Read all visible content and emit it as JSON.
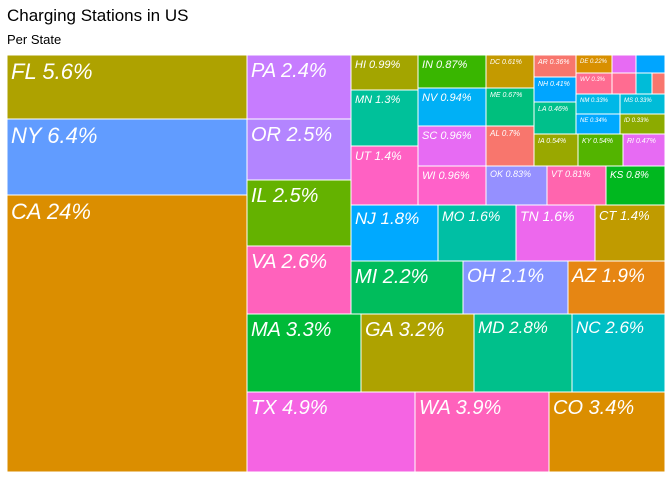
{
  "chart_data": {
    "type": "treemap",
    "title": "Charging Stations in US",
    "subtitle": "Per State",
    "tiles": [
      {
        "label": "CA 24%",
        "state": "CA",
        "value": 24,
        "color": "#DB8E00"
      },
      {
        "label": "NY 6.4%",
        "state": "NY",
        "value": 6.4,
        "color": "#619CFF"
      },
      {
        "label": "FL 5.6%",
        "state": "FL",
        "value": 5.6,
        "color": "#AEA200"
      },
      {
        "label": "TX 4.9%",
        "state": "TX",
        "value": 4.9,
        "color": "#F564E3"
      },
      {
        "label": "WA 3.9%",
        "state": "WA",
        "value": 3.9,
        "color": "#FF62BC"
      },
      {
        "label": "CO 3.4%",
        "state": "CO",
        "value": 3.4,
        "color": "#DB8E00"
      },
      {
        "label": "MA 3.3%",
        "state": "MA",
        "value": 3.3,
        "color": "#00BA38"
      },
      {
        "label": "GA 3.2%",
        "state": "GA",
        "value": 3.2,
        "color": "#AEA200"
      },
      {
        "label": "MD 2.8%",
        "state": "MD",
        "value": 2.8,
        "color": "#00C08B"
      },
      {
        "label": "NC 2.6%",
        "state": "NC",
        "value": 2.6,
        "color": "#00BFC4"
      },
      {
        "label": "VA 2.6%",
        "state": "VA",
        "value": 2.6,
        "color": "#FF62BC"
      },
      {
        "label": "IL 2.5%",
        "state": "IL",
        "value": 2.5,
        "color": "#64B200"
      },
      {
        "label": "OR 2.5%",
        "state": "OR",
        "value": 2.5,
        "color": "#B385FF"
      },
      {
        "label": "PA 2.4%",
        "state": "PA",
        "value": 2.4,
        "color": "#C77CFF"
      },
      {
        "label": "MI 2.2%",
        "state": "MI",
        "value": 2.2,
        "color": "#00BD5C"
      },
      {
        "label": "OH 2.1%",
        "state": "OH",
        "value": 2.1,
        "color": "#8494FF"
      },
      {
        "label": "AZ 1.9%",
        "state": "AZ",
        "value": 1.9,
        "color": "#E68613"
      },
      {
        "label": "NJ 1.8%",
        "state": "NJ",
        "value": 1.8,
        "color": "#00A9FF"
      },
      {
        "label": "MO 1.6%",
        "state": "MO",
        "value": 1.6,
        "color": "#00BFA4"
      },
      {
        "label": "TN 1.6%",
        "state": "TN",
        "value": 1.6,
        "color": "#ED68ED"
      },
      {
        "label": "CT 1.4%",
        "state": "CT",
        "value": 1.4,
        "color": "#C09B00"
      },
      {
        "label": "UT 1.4%",
        "state": "UT",
        "value": 1.4,
        "color": "#FF61C3"
      },
      {
        "label": "MN 1.3%",
        "state": "MN",
        "value": 1.3,
        "color": "#00C19A"
      },
      {
        "label": "HI 0.99%",
        "state": "HI",
        "value": 0.99,
        "color": "#A3A500"
      },
      {
        "label": "SC 0.96%",
        "state": "SC",
        "value": 0.96,
        "color": "#E76BF3"
      },
      {
        "label": "WI 0.96%",
        "state": "WI",
        "value": 0.96,
        "color": "#FF61C9"
      },
      {
        "label": "NV 0.94%",
        "state": "NV",
        "value": 0.94,
        "color": "#00B0F6"
      },
      {
        "label": "IN 0.87%",
        "state": "IN",
        "value": 0.87,
        "color": "#39B600"
      },
      {
        "label": "OK 0.83%",
        "state": "OK",
        "value": 0.83,
        "color": "#9590FF"
      },
      {
        "label": "VT 0.81%",
        "state": "VT",
        "value": 0.81,
        "color": "#FF65AE"
      },
      {
        "label": "KS 0.8%",
        "state": "KS",
        "value": 0.8,
        "color": "#00B81F"
      },
      {
        "label": "AL 0.7%",
        "state": "AL",
        "value": 0.7,
        "color": "#F8766D"
      },
      {
        "label": "DC 0.61%",
        "state": "DC",
        "value": 0.61,
        "color": "#C49A00"
      },
      {
        "label": "ME 0.67%",
        "state": "ME",
        "value": 0.67,
        "color": "#00BF7D"
      },
      {
        "label": "KY 0.54%",
        "state": "KY",
        "value": 0.54,
        "color": "#53B400"
      },
      {
        "label": "IA 0.54%",
        "state": "IA",
        "value": 0.54,
        "color": "#99A800"
      },
      {
        "label": "RI 0.47%",
        "state": "RI",
        "value": 0.47,
        "color": "#E76BF3"
      },
      {
        "label": "LA 0.46%",
        "state": "LA",
        "value": 0.46,
        "color": "#00C08B"
      },
      {
        "label": "NH 0.41%",
        "state": "NH",
        "value": 0.41,
        "color": "#00A5FF"
      },
      {
        "label": "AR 0.36%",
        "state": "AR",
        "value": 0.36,
        "color": "#F8766D"
      },
      {
        "label": "NM 0.33%",
        "state": "NM",
        "value": 0.33,
        "color": "#00B8E7"
      },
      {
        "label": "MS 0.33%",
        "state": "MS",
        "value": 0.33,
        "color": "#00BCD8"
      },
      {
        "label": "NE 0.34%",
        "state": "NE",
        "value": 0.34,
        "color": "#00A9FF"
      },
      {
        "label": "ID 0.33%",
        "state": "ID",
        "value": 0.33,
        "color": "#8CAB00"
      },
      {
        "label": "DE 0.22%",
        "state": "DE",
        "value": 0.22,
        "color": "#D89000"
      },
      {
        "label": "WV 0.3%",
        "state": "WV",
        "value": 0.3,
        "color": "#FF6C91"
      },
      {
        "label": "",
        "state": "",
        "value": 0.15,
        "color": "#E76BF3"
      },
      {
        "label": "",
        "state": "",
        "value": 0.12,
        "color": "#00A5FF"
      },
      {
        "label": "",
        "state": "",
        "value": 0.1,
        "color": "#FF6C91"
      },
      {
        "label": "",
        "state": "",
        "value": 0.15,
        "color": "#00BCD8"
      },
      {
        "label": "",
        "state": "",
        "value": 0.1,
        "color": "#F8766D"
      }
    ]
  }
}
